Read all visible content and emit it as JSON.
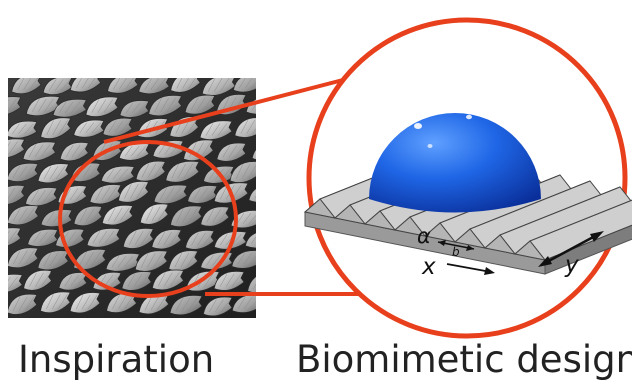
{
  "captions": {
    "inspiration": "Inspiration",
    "biomimetic": "Biomimetic design"
  },
  "labels": {
    "alpha": "α",
    "b": "b",
    "x": "x",
    "y": "y"
  },
  "colors": {
    "highlight": "#e8401c",
    "droplet": "#1d63e0",
    "surface_top": "#f2f2f2",
    "surface_side": "#9a9a9a"
  }
}
